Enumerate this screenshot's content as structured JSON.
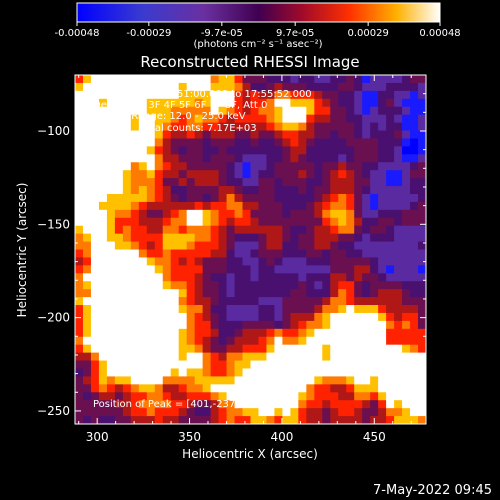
{
  "chart_data": {
    "type": "heatmap",
    "title": "Reconstructed RHESSI Image",
    "xlabel": "Heliocentric X (arcsec)",
    "ylabel": "Heliocentric Y (arcsec)",
    "xlim": [
      288,
      478
    ],
    "ylim": [
      -257,
      -70
    ],
    "x_ticks": [
      300,
      350,
      400,
      450
    ],
    "y_ticks": [
      -100,
      -150,
      -200,
      -250
    ],
    "colorbar": {
      "tick_labels": [
        "-0.00048",
        "-0.00029",
        "-9.7e-05",
        "9.7e-05",
        "0.00029",
        "0.00048"
      ],
      "tick_values": [
        -0.00048,
        -0.00029,
        -9.7e-05,
        9.7e-05,
        0.00029,
        0.00048
      ],
      "range": [
        -0.00048,
        0.00048
      ],
      "units": "(photons cm⁻² s⁻¹ asec⁻²)"
    },
    "annotations": [
      "13-Dec-2007 17:51:00.000 to 17:55:52.000",
      "Detectors: 3F 4F 5F 6F 7F 8F, Att 0",
      "Energy Range: 12.0 - 25.0 keV",
      "Clean      Total counts: 7.17E+03"
    ],
    "peak_label": "Position of Peak = [401,-237]",
    "grid": false,
    "colormap": [
      "#0000ff",
      "#1a1aff",
      "#5a2aa0",
      "#4a1070",
      "#6a1050",
      "#b01818",
      "#ff2200",
      "#ff7a00",
      "#ffc000",
      "#ffffff"
    ]
  },
  "footer": {
    "timestamp": "7-May-2022 09:45"
  }
}
